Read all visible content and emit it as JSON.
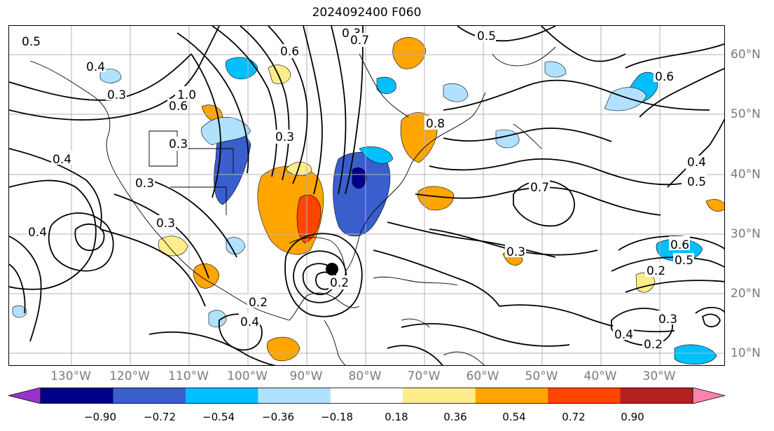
{
  "title": "2024092400 F060",
  "lat_labels": [
    "60°N",
    "50°N",
    "40°N",
    "30°N",
    "20°N",
    "10°N"
  ],
  "lon_labels": [
    "130°W",
    "120°W",
    "110°W",
    "100°W",
    "90°W",
    "80°W",
    "70°W",
    "60°W",
    "50°W",
    "40°W",
    "30°W"
  ],
  "colorbar": {
    "ticks": [
      "−0.90",
      "−0.72",
      "−0.54",
      "−0.36",
      "−0.18",
      "0.18",
      "0.36",
      "0.54",
      "0.72",
      "0.90"
    ],
    "colors": [
      "#9932cc",
      "#00008b",
      "#3a5fcd",
      "#00bfff",
      "#b0e2ff",
      "#ffffff",
      "#ffec8b",
      "#ffa500",
      "#ff4500",
      "#b22222",
      "#ff82ab"
    ]
  },
  "contour_labels": [
    "0.5",
    "0.4",
    "0.3",
    "1.0",
    "0.6",
    "0.3",
    "0.3",
    "0.4",
    "0.3",
    "0.6",
    "0.8",
    "0.3",
    "0.4",
    "0.3",
    "0.7",
    "0.5",
    "0.4",
    "0.5",
    "0.6",
    "0.7",
    "0.3",
    "0.2",
    "0.4",
    "0.2",
    "0.3",
    "0.4",
    "0.2",
    "0.5",
    "0.6",
    "0.2"
  ],
  "storm_marker": "hurricane-center",
  "colors": {
    "axis": "#000000",
    "grid": "#b3b3b3",
    "tick_text": "#7a7a7a"
  }
}
